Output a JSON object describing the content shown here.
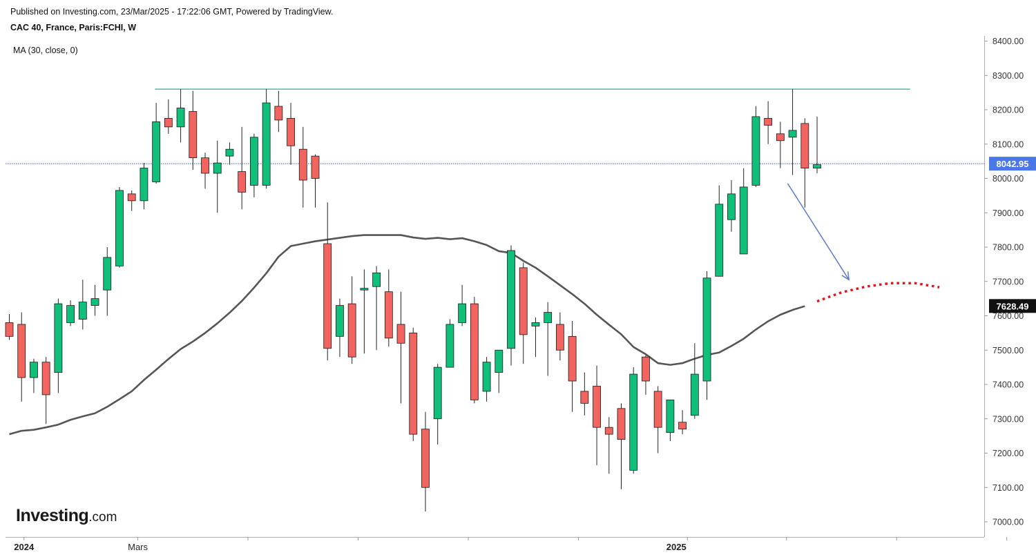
{
  "header": {
    "published": "Published on Investing.com, 23/Mar/2025 - 17:22:06 GMT, Powered by TradingView.",
    "symbol": "CAC 40, France, Paris:FCHI, W",
    "indicator": "MA (30, close, 0)"
  },
  "logo": {
    "brand": "Investing",
    "suffix": ".com"
  },
  "colors": {
    "up": "#0fbf7a",
    "down": "#f2645f",
    "wick": "#222222",
    "ma": "#555555",
    "resistance": "#3aa58f",
    "price_line": "#3355bb",
    "price_label_bg": "#4a78e8",
    "ma_label_bg": "#111111",
    "projection_dots": "#e8141b",
    "arrow": "#5b79c9"
  },
  "chart_data": {
    "type": "candlestick",
    "ylim": [
      6950,
      8450
    ],
    "y_ticks": [
      "7000.00",
      "7100.00",
      "7200.00",
      "7300.00",
      "7400.00",
      "7500.00",
      "7600.00",
      "7700.00",
      "7800.00",
      "7900.00",
      "8000.00",
      "8100.00",
      "8200.00",
      "8300.00",
      "8400.00"
    ],
    "x_labels": [
      {
        "label": "2024",
        "index": 1.2
      },
      {
        "label": "Mars",
        "index": 10.5
      }
    ],
    "x_labels_2025": {
      "label": "2025",
      "index": 54.5
    },
    "x_tick_indices": [
      1.2,
      10.5,
      19.5,
      28.5,
      37.5,
      46.5,
      55.4,
      63.5,
      72.5,
      81.5
    ],
    "candles": [
      [
        7580,
        7540,
        7605,
        7530
      ],
      [
        7575,
        7420,
        7610,
        7350
      ],
      [
        7420,
        7465,
        7475,
        7375
      ],
      [
        7465,
        7370,
        7480,
        7285
      ],
      [
        7435,
        7635,
        7650,
        7375
      ],
      [
        7580,
        7630,
        7645,
        7570
      ],
      [
        7590,
        7640,
        7705,
        7560
      ],
      [
        7630,
        7650,
        7690,
        7600
      ],
      [
        7675,
        7770,
        7800,
        7600
      ],
      [
        7745,
        7965,
        7975,
        7740
      ],
      [
        7955,
        7935,
        7965,
        7905
      ],
      [
        7935,
        8030,
        8045,
        7910
      ],
      [
        7990,
        8165,
        8220,
        7985
      ],
      [
        8175,
        8150,
        8230,
        8130
      ],
      [
        8150,
        8205,
        8260,
        8105
      ],
      [
        8195,
        8060,
        8255,
        8025
      ],
      [
        8060,
        8015,
        8075,
        7970
      ],
      [
        8015,
        8045,
        8110,
        7900
      ],
      [
        8065,
        8085,
        8105,
        8040
      ],
      [
        8020,
        7960,
        8150,
        7910
      ],
      [
        7980,
        8120,
        8130,
        7945
      ],
      [
        7980,
        8220,
        8260,
        7970
      ],
      [
        8210,
        8170,
        8255,
        8135
      ],
      [
        8175,
        8095,
        8220,
        8040
      ],
      [
        8085,
        7995,
        8150,
        7915
      ],
      [
        8065,
        8000,
        8070,
        7915
      ],
      [
        7810,
        7505,
        7930,
        7470
      ],
      [
        7540,
        7630,
        7650,
        7480
      ],
      [
        7635,
        7480,
        7715,
        7460
      ],
      [
        7675,
        7680,
        7735,
        7490
      ],
      [
        7685,
        7725,
        7745,
        7500
      ],
      [
        7670,
        7535,
        7735,
        7510
      ],
      [
        7575,
        7520,
        7670,
        7345
      ],
      [
        7550,
        7255,
        7565,
        7235
      ],
      [
        7270,
        7100,
        7320,
        7030
      ],
      [
        7300,
        7450,
        7460,
        7225
      ],
      [
        7450,
        7575,
        7590,
        7450
      ],
      [
        7580,
        7635,
        7690,
        7570
      ],
      [
        7635,
        7355,
        7655,
        7345
      ],
      [
        7380,
        7465,
        7480,
        7350
      ],
      [
        7435,
        7500,
        7500,
        7375
      ],
      [
        7505,
        7790,
        7805,
        7455
      ],
      [
        7740,
        7545,
        7755,
        7460
      ],
      [
        7570,
        7580,
        7595,
        7480
      ],
      [
        7580,
        7610,
        7640,
        7425
      ],
      [
        7575,
        7500,
        7610,
        7470
      ],
      [
        7540,
        7410,
        7585,
        7320
      ],
      [
        7380,
        7345,
        7435,
        7310
      ],
      [
        7395,
        7275,
        7455,
        7165
      ],
      [
        7275,
        7255,
        7305,
        7140
      ],
      [
        7330,
        7240,
        7345,
        7095
      ],
      [
        7150,
        7430,
        7450,
        7140
      ],
      [
        7480,
        7410,
        7485,
        7370
      ],
      [
        7380,
        7275,
        7395,
        7200
      ],
      [
        7260,
        7355,
        7355,
        7235
      ],
      [
        7290,
        7270,
        7325,
        7255
      ],
      [
        7310,
        7430,
        7520,
        7300
      ],
      [
        7410,
        7710,
        7730,
        7355
      ],
      [
        7715,
        7925,
        7980,
        7715
      ],
      [
        7880,
        7955,
        7995,
        7845
      ],
      [
        7780,
        7975,
        8030,
        7780
      ],
      [
        7980,
        8180,
        8210,
        7975
      ],
      [
        8175,
        8155,
        8225,
        8100
      ],
      [
        8130,
        8110,
        8165,
        8030
      ],
      [
        8120,
        8140,
        8260,
        8010
      ],
      [
        8160,
        8030,
        8175,
        7915
      ],
      [
        8030,
        8040,
        8180,
        8015
      ]
    ],
    "ma_points": [
      [
        0,
        7255
      ],
      [
        1,
        7265
      ],
      [
        2,
        7268
      ],
      [
        3,
        7275
      ],
      [
        4,
        7283
      ],
      [
        5,
        7297
      ],
      [
        6,
        7307
      ],
      [
        7,
        7316
      ],
      [
        8,
        7335
      ],
      [
        9,
        7357
      ],
      [
        10,
        7380
      ],
      [
        11,
        7413
      ],
      [
        12,
        7443
      ],
      [
        13,
        7474
      ],
      [
        14,
        7503
      ],
      [
        15,
        7525
      ],
      [
        16,
        7550
      ],
      [
        17,
        7578
      ],
      [
        18,
        7609
      ],
      [
        19,
        7643
      ],
      [
        20,
        7682
      ],
      [
        21,
        7724
      ],
      [
        22,
        7772
      ],
      [
        23,
        7803
      ],
      [
        24,
        7810
      ],
      [
        25,
        7817
      ],
      [
        26,
        7822
      ],
      [
        27,
        7827
      ],
      [
        28,
        7832
      ],
      [
        29,
        7835
      ],
      [
        30,
        7835
      ],
      [
        31,
        7835
      ],
      [
        32,
        7835
      ],
      [
        33,
        7828
      ],
      [
        34,
        7824
      ],
      [
        35,
        7827
      ],
      [
        36,
        7823
      ],
      [
        37,
        7826
      ],
      [
        38,
        7817
      ],
      [
        39,
        7806
      ],
      [
        40,
        7788
      ],
      [
        41,
        7783
      ],
      [
        42,
        7760
      ],
      [
        43,
        7740
      ],
      [
        44,
        7715
      ],
      [
        45,
        7689
      ],
      [
        46,
        7663
      ],
      [
        47,
        7635
      ],
      [
        48,
        7603
      ],
      [
        49,
        7574
      ],
      [
        50,
        7546
      ],
      [
        51,
        7509
      ],
      [
        52,
        7488
      ],
      [
        53,
        7462
      ],
      [
        54,
        7457
      ],
      [
        55,
        7462
      ],
      [
        56,
        7475
      ],
      [
        57,
        7486
      ],
      [
        58,
        7493
      ],
      [
        59,
        7512
      ],
      [
        60,
        7533
      ],
      [
        61,
        7560
      ],
      [
        62,
        7584
      ],
      [
        63,
        7603
      ],
      [
        64,
        7617
      ],
      [
        65,
        7628
      ]
    ],
    "resistance": {
      "value": 8260,
      "from_index": 11.9,
      "to_index": 73.6
    },
    "current_price": {
      "value": 8042.95,
      "label": "8042.95"
    },
    "ma_last": {
      "value": 7628.49,
      "label": "7628.49"
    },
    "projection": [
      [
        66,
        7642
      ],
      [
        68,
        7668
      ],
      [
        70,
        7685
      ],
      [
        72,
        7695
      ],
      [
        74,
        7695
      ],
      [
        76,
        7683
      ]
    ],
    "arrow": {
      "from": [
        63.6,
        7985
      ],
      "to": [
        68.6,
        7705
      ]
    }
  }
}
